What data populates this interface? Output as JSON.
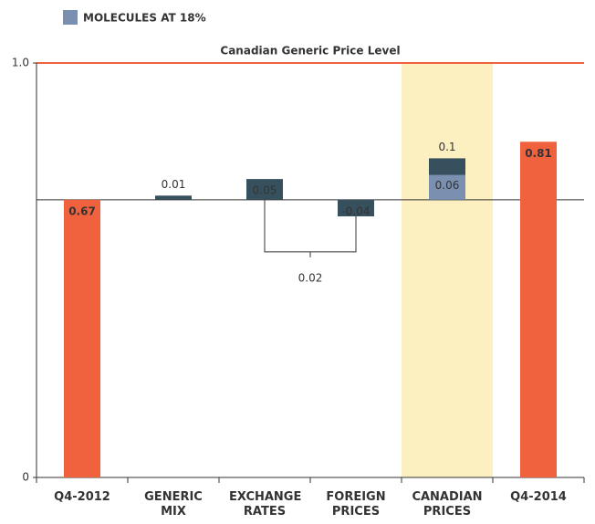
{
  "chart_data": {
    "type": "waterfall",
    "categories": [
      "Q4-2012",
      "GENERIC MIX",
      "EXCHANGE RATES",
      "FOREIGN PRICES",
      "CANADIAN PRICES",
      "Q4-2014"
    ],
    "values": [
      0.67,
      0.01,
      0.05,
      -0.04,
      0.1,
      0.81
    ],
    "totals": [
      true,
      false,
      false,
      false,
      false,
      true
    ],
    "total_color": "#f0623e",
    "change_color": "#37505e",
    "series": [
      {
        "name": "MOLECULES AT 18%",
        "color": "#7b8fb0",
        "values": [
          null,
          null,
          null,
          null,
          0.06,
          null
        ]
      }
    ],
    "band_color": "#fdf0c0",
    "reference_line": {
      "value": 1,
      "label": "Canadian Generic Price Level",
      "color": "#f0623e"
    },
    "net_change": 0.02,
    "ylim": [
      0,
      1
    ],
    "yticks": [
      0,
      {
        "value": 1,
        "label": "1.0"
      }
    ]
  }
}
